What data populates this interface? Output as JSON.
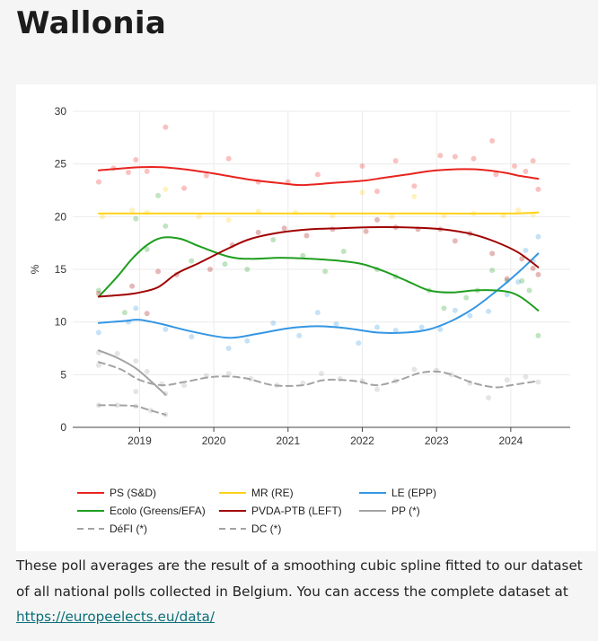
{
  "page": {
    "title": "Wallonia",
    "caption_text": "These poll averages are the result of a smoothing cubic spline fitted to our dataset of all national polls collected in Belgium. You can access the complete dataset at",
    "caption_link": "https://europeelects.eu/data/"
  },
  "chart_data": {
    "type": "line",
    "title": "",
    "xlabel": "",
    "ylabel": "%",
    "xlim": [
      2018.1,
      2024.8
    ],
    "ylim": [
      0,
      30
    ],
    "y_ticks": [
      0,
      5,
      10,
      15,
      20,
      25,
      30
    ],
    "x_ticks": [
      2019,
      2020,
      2021,
      2022,
      2023,
      2024
    ],
    "grid": true,
    "legend_position": "bottom",
    "series": [
      {
        "name": "PS (S&D)",
        "color": "#e8231e",
        "dash": "solid",
        "x": [
          2018.45,
          2018.8,
          2019.0,
          2019.3,
          2019.6,
          2020.0,
          2020.5,
          2021.0,
          2021.2,
          2021.6,
          2022.0,
          2022.3,
          2022.6,
          2023.0,
          2023.5,
          2023.9,
          2024.1,
          2024.37
        ],
        "y": [
          24.4,
          24.6,
          24.7,
          24.7,
          24.5,
          24.1,
          23.5,
          23.1,
          23.0,
          23.2,
          23.4,
          23.7,
          24.0,
          24.4,
          24.5,
          24.2,
          23.9,
          23.6
        ],
        "points": [
          [
            2018.45,
            23.3
          ],
          [
            2018.65,
            24.6
          ],
          [
            2018.85,
            24.2
          ],
          [
            2018.95,
            25.4
          ],
          [
            2019.1,
            24.3
          ],
          [
            2019.35,
            28.5
          ],
          [
            2019.6,
            22.7
          ],
          [
            2019.9,
            23.9
          ],
          [
            2020.2,
            25.5
          ],
          [
            2020.6,
            23.3
          ],
          [
            2021.0,
            23.3
          ],
          [
            2021.4,
            24.0
          ],
          [
            2022.0,
            24.8
          ],
          [
            2022.2,
            22.4
          ],
          [
            2022.45,
            25.3
          ],
          [
            2022.7,
            22.9
          ],
          [
            2023.05,
            25.8
          ],
          [
            2023.25,
            25.7
          ],
          [
            2023.5,
            25.5
          ],
          [
            2023.75,
            27.2
          ],
          [
            2023.8,
            24.0
          ],
          [
            2024.05,
            24.8
          ],
          [
            2024.2,
            24.3
          ],
          [
            2024.3,
            25.3
          ],
          [
            2024.37,
            22.6
          ]
        ]
      },
      {
        "name": "MR (RE)",
        "color": "#ffd117",
        "dash": "solid",
        "x": [
          2018.45,
          2019.0,
          2020.0,
          2021.0,
          2022.0,
          2023.0,
          2024.0,
          2024.37
        ],
        "y": [
          20.3,
          20.3,
          20.3,
          20.3,
          20.3,
          20.3,
          20.3,
          20.4
        ],
        "points": [
          [
            2018.5,
            20.0
          ],
          [
            2018.9,
            20.6
          ],
          [
            2019.1,
            20.4
          ],
          [
            2019.35,
            22.6
          ],
          [
            2019.8,
            20.0
          ],
          [
            2020.2,
            19.7
          ],
          [
            2020.6,
            20.5
          ],
          [
            2021.1,
            20.4
          ],
          [
            2021.6,
            20.1
          ],
          [
            2022.0,
            22.3
          ],
          [
            2022.4,
            20.0
          ],
          [
            2022.7,
            21.9
          ],
          [
            2023.1,
            20.1
          ],
          [
            2023.5,
            20.3
          ],
          [
            2023.9,
            20.1
          ],
          [
            2024.1,
            20.6
          ],
          [
            2024.3,
            20.2
          ]
        ]
      },
      {
        "name": "LE (EPP)",
        "color": "#3496e3",
        "dash": "solid",
        "x": [
          2018.45,
          2018.8,
          2019.0,
          2019.3,
          2019.7,
          2020.2,
          2020.6,
          2021.0,
          2021.4,
          2021.8,
          2022.2,
          2022.6,
          2022.9,
          2023.2,
          2023.5,
          2023.8,
          2024.1,
          2024.37
        ],
        "y": [
          9.9,
          10.1,
          10.2,
          9.8,
          9.1,
          8.5,
          8.9,
          9.4,
          9.6,
          9.4,
          9.0,
          9.0,
          9.3,
          10.1,
          11.3,
          12.9,
          14.7,
          16.5
        ],
        "points": [
          [
            2018.45,
            9.0
          ],
          [
            2018.85,
            10.0
          ],
          [
            2018.95,
            11.3
          ],
          [
            2019.35,
            9.3
          ],
          [
            2019.7,
            8.6
          ],
          [
            2020.2,
            7.5
          ],
          [
            2020.45,
            8.2
          ],
          [
            2020.8,
            9.9
          ],
          [
            2021.15,
            8.7
          ],
          [
            2021.4,
            10.9
          ],
          [
            2021.65,
            9.8
          ],
          [
            2021.95,
            8.0
          ],
          [
            2022.2,
            9.5
          ],
          [
            2022.45,
            9.2
          ],
          [
            2022.8,
            9.5
          ],
          [
            2023.05,
            9.3
          ],
          [
            2023.25,
            11.1
          ],
          [
            2023.45,
            10.6
          ],
          [
            2023.7,
            11.0
          ],
          [
            2023.95,
            12.6
          ],
          [
            2024.1,
            13.8
          ],
          [
            2024.2,
            16.8
          ],
          [
            2024.3,
            15.8
          ],
          [
            2024.37,
            18.1
          ]
        ]
      },
      {
        "name": "Ecolo (Greens/EFA)",
        "color": "#1e9e1e",
        "dash": "solid",
        "x": [
          2018.45,
          2018.7,
          2018.9,
          2019.1,
          2019.3,
          2019.55,
          2019.8,
          2020.2,
          2020.5,
          2020.9,
          2021.3,
          2021.7,
          2022.0,
          2022.3,
          2022.6,
          2022.9,
          2023.2,
          2023.5,
          2023.8,
          2024.0,
          2024.15,
          2024.37
        ],
        "y": [
          12.4,
          14.3,
          16.0,
          17.3,
          18.0,
          17.9,
          17.2,
          16.2,
          16.0,
          16.1,
          16.0,
          15.8,
          15.5,
          14.8,
          13.9,
          13.0,
          12.8,
          13.0,
          13.0,
          12.8,
          12.3,
          11.1
        ],
        "points": [
          [
            2018.45,
            13.0
          ],
          [
            2018.8,
            10.9
          ],
          [
            2018.95,
            19.8
          ],
          [
            2019.1,
            16.9
          ],
          [
            2019.25,
            22.0
          ],
          [
            2019.35,
            19.1
          ],
          [
            2019.7,
            15.8
          ],
          [
            2020.15,
            15.5
          ],
          [
            2020.45,
            15.0
          ],
          [
            2020.8,
            17.8
          ],
          [
            2021.2,
            16.3
          ],
          [
            2021.5,
            14.8
          ],
          [
            2021.75,
            16.7
          ],
          [
            2022.2,
            15.0
          ],
          [
            2022.45,
            14.3
          ],
          [
            2022.9,
            13.0
          ],
          [
            2023.1,
            11.3
          ],
          [
            2023.4,
            12.3
          ],
          [
            2023.55,
            13.0
          ],
          [
            2023.75,
            14.9
          ],
          [
            2023.95,
            13.9
          ],
          [
            2024.15,
            13.9
          ],
          [
            2024.25,
            13.0
          ],
          [
            2024.37,
            8.7
          ]
        ]
      },
      {
        "name": "PVDA-PTB (LEFT)",
        "color": "#a00000",
        "dash": "solid",
        "x": [
          2018.45,
          2018.8,
          2019.0,
          2019.25,
          2019.5,
          2019.8,
          2020.2,
          2020.5,
          2020.9,
          2021.3,
          2021.7,
          2022.1,
          2022.5,
          2022.9,
          2023.2,
          2023.5,
          2023.8,
          2024.1,
          2024.37
        ],
        "y": [
          12.4,
          12.6,
          12.8,
          13.3,
          14.6,
          15.6,
          17.0,
          17.9,
          18.5,
          18.8,
          18.9,
          19.0,
          19.0,
          18.9,
          18.7,
          18.3,
          17.6,
          16.6,
          15.2
        ],
        "points": [
          [
            2018.45,
            12.7
          ],
          [
            2018.9,
            13.4
          ],
          [
            2019.1,
            10.8
          ],
          [
            2019.25,
            14.8
          ],
          [
            2019.5,
            14.5
          ],
          [
            2019.95,
            15.0
          ],
          [
            2020.25,
            17.3
          ],
          [
            2020.6,
            18.5
          ],
          [
            2020.95,
            18.9
          ],
          [
            2021.25,
            18.2
          ],
          [
            2021.6,
            18.8
          ],
          [
            2022.05,
            18.6
          ],
          [
            2022.2,
            19.7
          ],
          [
            2022.45,
            19.0
          ],
          [
            2022.75,
            18.8
          ],
          [
            2023.05,
            18.8
          ],
          [
            2023.25,
            17.7
          ],
          [
            2023.45,
            18.4
          ],
          [
            2023.75,
            16.5
          ],
          [
            2023.95,
            14.1
          ],
          [
            2024.15,
            16.0
          ],
          [
            2024.3,
            15.1
          ],
          [
            2024.37,
            14.5
          ]
        ]
      },
      {
        "name": "PP (*)",
        "color": "#a3a3a3",
        "dash": "solid",
        "x": [
          2018.45,
          2018.7,
          2018.95,
          2019.15,
          2019.35
        ],
        "y": [
          7.3,
          6.6,
          5.6,
          4.4,
          3.1
        ],
        "points": [
          [
            2018.45,
            7.1
          ],
          [
            2018.7,
            7.0
          ],
          [
            2018.95,
            6.3
          ],
          [
            2019.1,
            5.3
          ],
          [
            2019.35,
            3.2
          ]
        ]
      },
      {
        "name": "DéFI (*)",
        "color": "#a3a3a3",
        "dash": "dashed",
        "x": [
          2018.45,
          2018.75,
          2019.0,
          2019.3,
          2019.6,
          2020.0,
          2020.4,
          2020.8,
          2021.2,
          2021.5,
          2021.9,
          2022.2,
          2022.5,
          2022.8,
          2023.1,
          2023.5,
          2023.8,
          2024.0,
          2024.37
        ],
        "y": [
          6.2,
          5.5,
          4.5,
          4.0,
          4.3,
          4.8,
          4.7,
          4.0,
          4.0,
          4.5,
          4.4,
          4.0,
          4.5,
          5.2,
          5.2,
          4.2,
          3.8,
          4.0,
          4.4
        ],
        "points": [
          [
            2018.45,
            5.9
          ],
          [
            2018.95,
            3.4
          ],
          [
            2019.3,
            4.1
          ],
          [
            2019.6,
            4.0
          ],
          [
            2019.9,
            4.9
          ],
          [
            2020.2,
            5.1
          ],
          [
            2020.5,
            4.6
          ],
          [
            2020.85,
            4.0
          ],
          [
            2021.2,
            4.2
          ],
          [
            2021.45,
            5.1
          ],
          [
            2021.7,
            4.6
          ],
          [
            2022.0,
            4.4
          ],
          [
            2022.2,
            3.6
          ],
          [
            2022.45,
            4.4
          ],
          [
            2022.7,
            5.5
          ],
          [
            2023.0,
            5.4
          ],
          [
            2023.2,
            5.0
          ],
          [
            2023.45,
            4.2
          ],
          [
            2023.7,
            2.8
          ],
          [
            2023.95,
            4.5
          ],
          [
            2024.2,
            4.8
          ],
          [
            2024.37,
            4.3
          ]
        ]
      },
      {
        "name": "DC (*)",
        "color": "#a3a3a3",
        "dash": "dashed",
        "x": [
          2018.45,
          2018.7,
          2018.95,
          2019.15,
          2019.35
        ],
        "y": [
          2.1,
          2.1,
          2.0,
          1.6,
          1.2
        ],
        "points": [
          [
            2018.45,
            2.1
          ],
          [
            2018.7,
            2.1
          ],
          [
            2018.95,
            2.0
          ],
          [
            2019.15,
            1.6
          ],
          [
            2019.35,
            1.2
          ]
        ]
      }
    ]
  }
}
